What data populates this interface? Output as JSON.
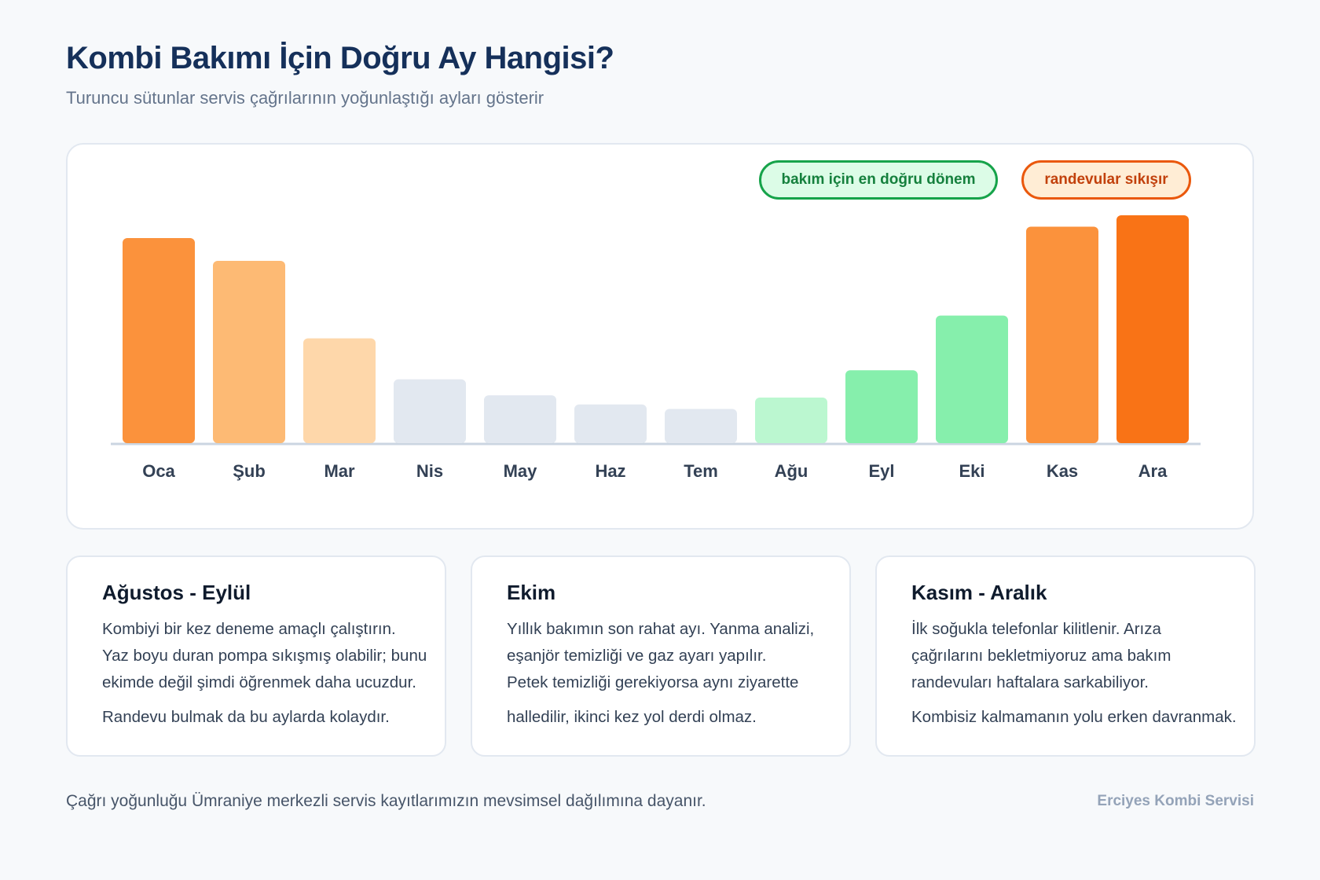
{
  "header": {
    "title": "Kombi Bakımı İçin Doğru Ay Hangisi?",
    "subtitle": "Turuncu sütunlar servis çağrılarının yoğunlaştığı ayları gösterir"
  },
  "legend": {
    "good": "bakım için en doğru dönem",
    "busy": "randevular sıkışır"
  },
  "chart_data": {
    "type": "bar",
    "title": "",
    "xlabel": "",
    "ylabel": "",
    "categories": [
      "Oca",
      "Şub",
      "Mar",
      "Nis",
      "May",
      "Haz",
      "Tem",
      "Ağu",
      "Eyl",
      "Eki",
      "Kas",
      "Ara"
    ],
    "values": [
      90,
      80,
      46,
      28,
      21,
      17,
      15,
      20,
      32,
      56,
      95,
      100
    ],
    "ylim": [
      0,
      100
    ],
    "grid": false,
    "bar_colors": [
      "#fb923c",
      "#fdba74",
      "#fed7aa",
      "#e2e8f0",
      "#e2e8f0",
      "#e2e8f0",
      "#e2e8f0",
      "#bbf7d0",
      "#86efac",
      "#86efac",
      "#fb923c",
      "#f97316"
    ],
    "axis_color": "#cbd5e1"
  },
  "cards": [
    {
      "title": "Ağustos - Eylül",
      "lines": [
        "Kombiyi bir kez deneme amaçlı çalıştırın.",
        "Yaz boyu duran pompa sıkışmış olabilir; bunu",
        "ekimde değil şimdi öğrenmek daha ucuzdur."
      ],
      "note": "Randevu bulmak da bu aylarda kolaydır."
    },
    {
      "title": "Ekim",
      "lines": [
        "Yıllık bakımın son rahat ayı. Yanma analizi,",
        "eşanjör temizliği ve gaz ayarı yapılır.",
        "Petek temizliği gerekiyorsa aynı ziyarette"
      ],
      "note": "halledilir, ikinci kez yol derdi olmaz."
    },
    {
      "title": "Kasım - Aralık",
      "lines": [
        "İlk soğukla telefonlar kilitlenir. Arıza",
        "çağrılarını bekletmiyoruz ama bakım",
        "randevuları haftalara sarkabiliyor."
      ],
      "note": "Kombisiz kalmamanın yolu erken davranmak."
    }
  ],
  "footer": {
    "note": "Çağrı yoğunluğu Ümraniye merkezli servis kayıtlarımızın mevsimsel dağılımına dayanır.",
    "brand": "Erciyes Kombi Servisi"
  }
}
